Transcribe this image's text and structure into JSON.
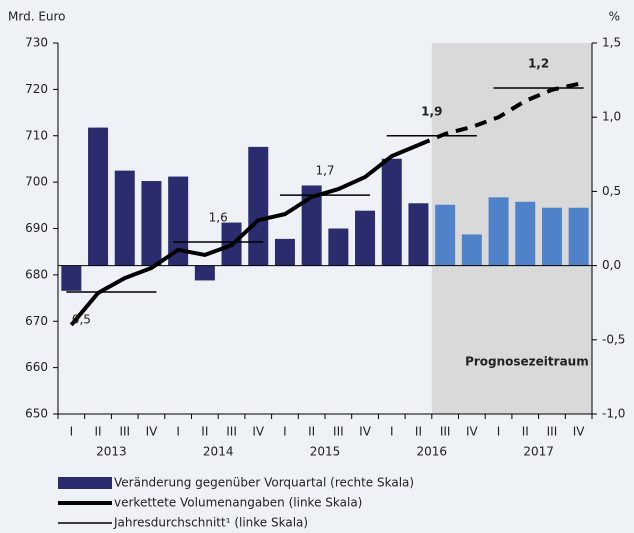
{
  "chart_data": {
    "type": "combo",
    "y_label": "Mrd. Euro",
    "y2_label": "%",
    "quarters": [
      "I",
      "II",
      "III",
      "IV",
      "I",
      "II",
      "III",
      "IV",
      "I",
      "II",
      "III",
      "IV",
      "I",
      "II",
      "III",
      "IV",
      "I",
      "II",
      "III",
      "IV"
    ],
    "years": [
      "2013",
      "2014",
      "2015",
      "2016",
      "2017"
    ],
    "ylim": [
      650,
      730
    ],
    "yticks": [
      650,
      660,
      670,
      680,
      690,
      700,
      710,
      720,
      730
    ],
    "y2lim": [
      -1.0,
      1.5
    ],
    "y2ticks": [
      {
        "value": -1.0,
        "label": "-1,0"
      },
      {
        "value": -0.5,
        "label": "-0,5"
      },
      {
        "value": 0,
        "label": "0,0"
      },
      {
        "value": 0.5,
        "label": "0,5"
      },
      {
        "value": 1.0,
        "label": "1,0"
      },
      {
        "value": 1.5,
        "label": "1,5"
      }
    ],
    "series": [
      {
        "name": "Veränderung gegenüber Vorquartal (rechte Skala)",
        "type": "bar",
        "axis": "y2",
        "color": "#2a2c6e",
        "forecast_color": "#4f82c8",
        "values": [
          -0.17,
          0.93,
          0.64,
          0.57,
          0.6,
          -0.1,
          0.29,
          0.8,
          0.18,
          0.54,
          0.25,
          0.37,
          0.72,
          0.42,
          0.41,
          0.21,
          0.46,
          0.43,
          0.39,
          0.39
        ]
      },
      {
        "name": "verkettete Volumenangaben (linke Skala)",
        "type": "line",
        "axis": "y",
        "color": "#000000",
        "values": [
          669.2,
          676.1,
          679.3,
          681.5,
          685.4,
          684.3,
          686.4,
          691.8,
          693.1,
          696.8,
          698.5,
          701.1,
          705.6,
          708.0,
          710.4,
          711.9,
          714.0,
          717.5,
          719.9,
          721.2
        ]
      },
      {
        "name": "Jahresdurchschnitt¹ (linke Skala)",
        "type": "average",
        "axis": "y",
        "color": "#000000",
        "values": [
          676.3,
          687.1,
          697.2,
          710.0,
          720.3
        ],
        "annotations": [
          "0,5",
          "1,6",
          "1,7",
          "1,9",
          "1,2"
        ]
      }
    ],
    "forecast": {
      "label": "Prognosezeitraum",
      "from_quarter": 14,
      "color": "#d9d9d9"
    }
  }
}
